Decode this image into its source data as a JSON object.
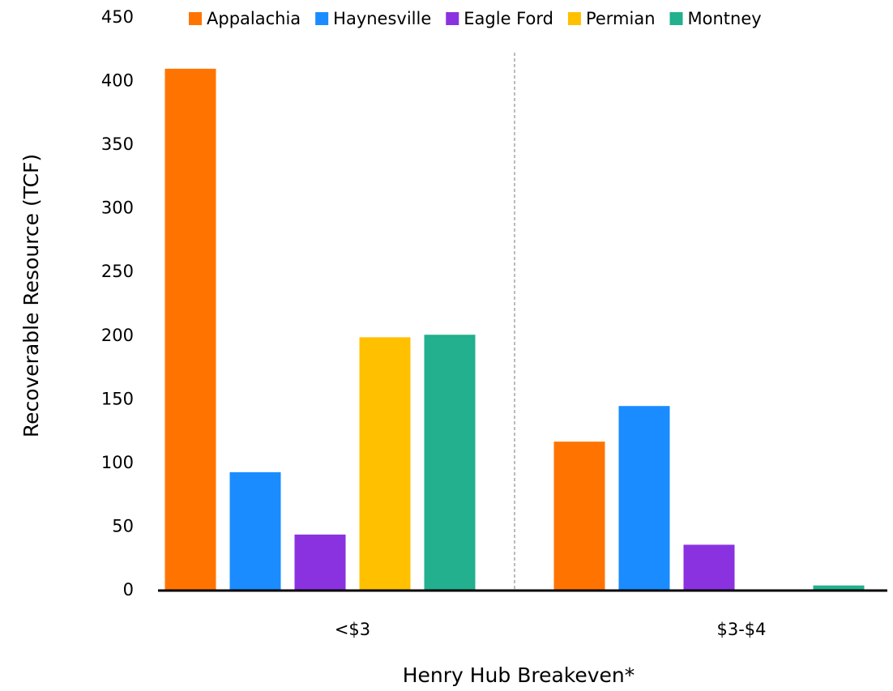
{
  "chart_data": {
    "type": "bar",
    "x_label": "Henry Hub Breakeven*",
    "y_label": "Recoverable Resource (TCF)",
    "categories": [
      "<$3",
      "$3-$4"
    ],
    "series": [
      {
        "name": "Appalachia",
        "color": "#ff7400",
        "values": [
          410,
          117
        ]
      },
      {
        "name": "Haynesville",
        "color": "#1a8cff",
        "values": [
          93,
          145
        ]
      },
      {
        "name": "Eagle Ford",
        "color": "#8a32e0",
        "values": [
          44,
          36
        ]
      },
      {
        "name": "Permian",
        "color": "#ffc000",
        "values": [
          199,
          0
        ]
      },
      {
        "name": "Montney",
        "color": "#22b08e",
        "values": [
          201,
          4
        ]
      }
    ],
    "ylim": [
      0,
      450
    ],
    "yticks": [
      0,
      50,
      100,
      150,
      200,
      250,
      300,
      350,
      400,
      450
    ],
    "grid": false,
    "legend": "top"
  }
}
